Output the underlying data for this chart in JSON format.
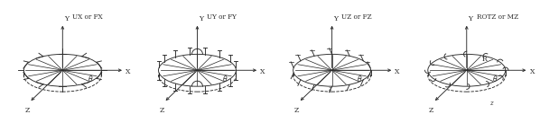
{
  "background_color": "#ffffff",
  "line_color": "#2a2a2a",
  "panels": [
    {
      "label": "UX or FX",
      "mode": "ux"
    },
    {
      "label": "UY or FY",
      "mode": "uy"
    },
    {
      "label": "UZ or FZ",
      "mode": "uz"
    },
    {
      "label": "ROTZ or MZ",
      "mode": "rotz"
    }
  ],
  "figsize": [
    5.98,
    1.47
  ],
  "dpi": 100,
  "ew": 0.72,
  "eh": 0.3,
  "n_spokes": 8,
  "lw": 0.65
}
